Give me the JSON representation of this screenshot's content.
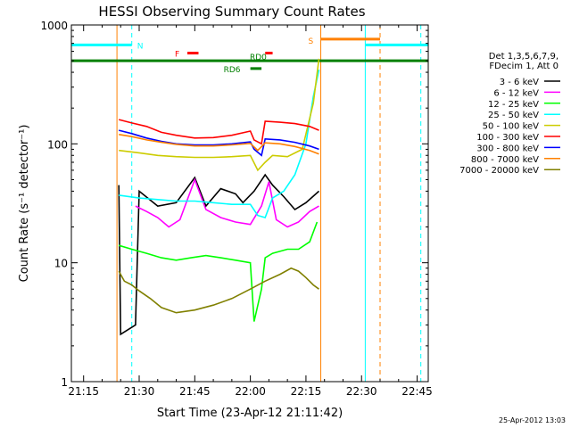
{
  "chart_data": {
    "type": "line",
    "title": "HESSI Observing Summary Count Rates",
    "xlabel": "Start Time (23-Apr-12 21:11:42)",
    "ylabel": "Count Rate (s⁻¹ detector⁻¹)",
    "xlim": [
      "21:11:42",
      "22:48:00"
    ],
    "ylim": [
      1,
      1000
    ],
    "yscale": "log",
    "x_ticks": [
      "21:15",
      "21:30",
      "21:45",
      "22:00",
      "22:15",
      "22:30",
      "22:45"
    ],
    "y_ticks": [
      "1",
      "10",
      "100",
      "1000"
    ],
    "legend_header": [
      "Det 1,3,5,6,7,9,",
      "FDecim 1, Att 0"
    ],
    "legend_position": "right",
    "timestamp": "25-Apr-2012 13:03",
    "series": [
      {
        "name": "3 - 6 keV",
        "color": "#000000",
        "points": [
          [
            "21:24:30",
            45
          ],
          [
            "21:25:00",
            2.5
          ],
          [
            "21:29:00",
            3
          ],
          [
            "21:30:00",
            40
          ],
          [
            "21:35:00",
            30
          ],
          [
            "21:40:00",
            32
          ],
          [
            "21:45:00",
            52
          ],
          [
            "21:48:00",
            30
          ],
          [
            "21:52:00",
            42
          ],
          [
            "21:56:00",
            38
          ],
          [
            "21:58:00",
            32
          ],
          [
            "22:01:00",
            40
          ],
          [
            "22:04:00",
            55
          ],
          [
            "22:06:00",
            45
          ],
          [
            "22:09:00",
            36
          ],
          [
            "22:12:00",
            28
          ],
          [
            "22:15:00",
            32
          ],
          [
            "22:18:30",
            40
          ]
        ]
      },
      {
        "name": "6 - 12 keV",
        "color": "#ff00ff",
        "points": [
          [
            "21:29:00",
            30
          ],
          [
            "21:32:00",
            27
          ],
          [
            "21:35:00",
            24
          ],
          [
            "21:38:00",
            20
          ],
          [
            "21:41:00",
            23
          ],
          [
            "21:45:00",
            50
          ],
          [
            "21:48:00",
            28
          ],
          [
            "21:52:00",
            24
          ],
          [
            "21:56:00",
            22
          ],
          [
            "22:00:00",
            21
          ],
          [
            "22:03:00",
            30
          ],
          [
            "22:05:00",
            48
          ],
          [
            "22:07:00",
            23
          ],
          [
            "22:10:00",
            20
          ],
          [
            "22:13:00",
            22
          ],
          [
            "22:16:00",
            27
          ],
          [
            "22:18:30",
            30
          ]
        ]
      },
      {
        "name": "12 - 25 keV",
        "color": "#00ff00",
        "points": [
          [
            "21:24:30",
            14
          ],
          [
            "21:28:00",
            13
          ],
          [
            "21:32:00",
            12
          ],
          [
            "21:36:00",
            11
          ],
          [
            "21:40:00",
            10.5
          ],
          [
            "21:44:00",
            11
          ],
          [
            "21:48:00",
            11.5
          ],
          [
            "21:52:00",
            11
          ],
          [
            "21:56:00",
            10.5
          ],
          [
            "22:00:00",
            10
          ],
          [
            "22:01:00",
            3.2
          ],
          [
            "22:03:00",
            6
          ],
          [
            "22:04:00",
            11
          ],
          [
            "22:06:00",
            12
          ],
          [
            "22:10:00",
            13
          ],
          [
            "22:13:00",
            13
          ],
          [
            "22:16:00",
            15
          ],
          [
            "22:18:00",
            22
          ]
        ]
      },
      {
        "name": "25 - 50 keV",
        "color": "#00ffff",
        "points": [
          [
            "21:24:30",
            37
          ],
          [
            "21:30:00",
            35
          ],
          [
            "21:35:00",
            34
          ],
          [
            "21:40:00",
            33
          ],
          [
            "21:45:00",
            33
          ],
          [
            "21:50:00",
            32
          ],
          [
            "21:55:00",
            31
          ],
          [
            "22:00:00",
            31
          ],
          [
            "22:02:00",
            25
          ],
          [
            "22:04:00",
            24
          ],
          [
            "22:06:00",
            35
          ],
          [
            "22:09:00",
            40
          ],
          [
            "22:12:00",
            55
          ],
          [
            "22:15:00",
            100
          ],
          [
            "22:17:00",
            250
          ],
          [
            "22:18:30",
            420
          ]
        ]
      },
      {
        "name": "50 - 100 keV",
        "color": "#cccc00",
        "points": [
          [
            "21:24:30",
            88
          ],
          [
            "21:30:00",
            84
          ],
          [
            "21:35:00",
            80
          ],
          [
            "21:40:00",
            78
          ],
          [
            "21:45:00",
            77
          ],
          [
            "21:50:00",
            77
          ],
          [
            "21:55:00",
            78
          ],
          [
            "22:00:00",
            80
          ],
          [
            "22:02:00",
            60
          ],
          [
            "22:04:00",
            70
          ],
          [
            "22:06:00",
            80
          ],
          [
            "22:10:00",
            78
          ],
          [
            "22:14:00",
            90
          ],
          [
            "22:17:00",
            220
          ],
          [
            "22:18:30",
            520
          ]
        ]
      },
      {
        "name": "100 - 300 keV",
        "color": "#ff0000",
        "points": [
          [
            "21:24:30",
            160
          ],
          [
            "21:28:00",
            150
          ],
          [
            "21:32:00",
            140
          ],
          [
            "21:36:00",
            125
          ],
          [
            "21:40:00",
            118
          ],
          [
            "21:45:00",
            112
          ],
          [
            "21:50:00",
            113
          ],
          [
            "21:55:00",
            118
          ],
          [
            "22:00:00",
            128
          ],
          [
            "22:01:00",
            108
          ],
          [
            "22:03:00",
            100
          ],
          [
            "22:04:00",
            155
          ],
          [
            "22:08:00",
            152
          ],
          [
            "22:12:00",
            148
          ],
          [
            "22:16:00",
            140
          ],
          [
            "22:18:30",
            130
          ]
        ]
      },
      {
        "name": "300 - 800 keV",
        "color": "#0000ff",
        "points": [
          [
            "21:24:30",
            130
          ],
          [
            "21:28:00",
            122
          ],
          [
            "21:32:00",
            112
          ],
          [
            "21:36:00",
            105
          ],
          [
            "21:40:00",
            100
          ],
          [
            "21:45:00",
            98
          ],
          [
            "21:50:00",
            98
          ],
          [
            "21:55:00",
            100
          ],
          [
            "22:00:00",
            104
          ],
          [
            "22:01:00",
            90
          ],
          [
            "22:03:00",
            80
          ],
          [
            "22:04:00",
            110
          ],
          [
            "22:08:00",
            108
          ],
          [
            "22:12:00",
            103
          ],
          [
            "22:16:00",
            96
          ],
          [
            "22:18:30",
            90
          ]
        ]
      },
      {
        "name": "800 - 7000 keV",
        "color": "#ff8000",
        "points": [
          [
            "21:24:30",
            120
          ],
          [
            "21:28:00",
            115
          ],
          [
            "21:32:00",
            108
          ],
          [
            "21:36:00",
            103
          ],
          [
            "21:40:00",
            99
          ],
          [
            "21:45:00",
            96
          ],
          [
            "21:50:00",
            96
          ],
          [
            "21:55:00",
            98
          ],
          [
            "22:00:00",
            101
          ],
          [
            "22:02:00",
            88
          ],
          [
            "22:04:00",
            102
          ],
          [
            "22:08:00",
            100
          ],
          [
            "22:12:00",
            95
          ],
          [
            "22:16:00",
            88
          ],
          [
            "22:18:30",
            82
          ]
        ]
      },
      {
        "name": "7000 - 20000 keV",
        "color": "#808000",
        "points": [
          [
            "21:24:30",
            8.5
          ],
          [
            "21:26:00",
            7
          ],
          [
            "21:28:00",
            6.5
          ],
          [
            "21:30:00",
            5.8
          ],
          [
            "21:33:00",
            5
          ],
          [
            "21:36:00",
            4.2
          ],
          [
            "21:40:00",
            3.8
          ],
          [
            "21:45:00",
            4
          ],
          [
            "21:50:00",
            4.4
          ],
          [
            "21:55:00",
            5
          ],
          [
            "22:00:00",
            6
          ],
          [
            "22:04:00",
            7
          ],
          [
            "22:08:00",
            8
          ],
          [
            "22:11:00",
            9
          ],
          [
            "22:13:00",
            8.5
          ],
          [
            "22:15:00",
            7.5
          ],
          [
            "22:17:00",
            6.5
          ],
          [
            "22:18:30",
            6
          ]
        ]
      }
    ],
    "state_bars": [
      {
        "label": "N",
        "color": "#00ffff",
        "y": 680,
        "segments": [
          [
            "21:11:42",
            "21:28:00"
          ],
          [
            "22:31:00",
            "22:48:00"
          ]
        ]
      },
      {
        "label": "S",
        "color": "#ff8000",
        "y": 760,
        "segments": [
          [
            "22:19:00",
            "22:35:00"
          ]
        ]
      },
      {
        "label": "F",
        "color": "#ff0000",
        "y": 580,
        "segments": [
          [
            "21:43:00",
            "21:46:00"
          ],
          [
            "22:04:00",
            "22:06:00"
          ]
        ]
      },
      {
        "label": "RD6",
        "color": "#008000",
        "y": 430,
        "segments": [
          [
            "22:00:00",
            "22:03:00"
          ]
        ]
      },
      {
        "label": "RD0",
        "color": "#008000",
        "y": 500,
        "segments": [
          [
            "21:11:42",
            "22:48:00"
          ]
        ]
      }
    ],
    "vlines": [
      {
        "t": "21:28:00",
        "color": "#00ffff",
        "dash": true
      },
      {
        "t": "22:46:00",
        "color": "#00ffff",
        "dash": true
      },
      {
        "t": "22:31:00",
        "color": "#00ffff",
        "dash": false
      },
      {
        "t": "21:24:00",
        "color": "#ff8000",
        "dash": false
      },
      {
        "t": "22:19:00",
        "color": "#ff8000",
        "dash": false
      },
      {
        "t": "22:35:00",
        "color": "#ff8000",
        "dash": true
      }
    ]
  }
}
